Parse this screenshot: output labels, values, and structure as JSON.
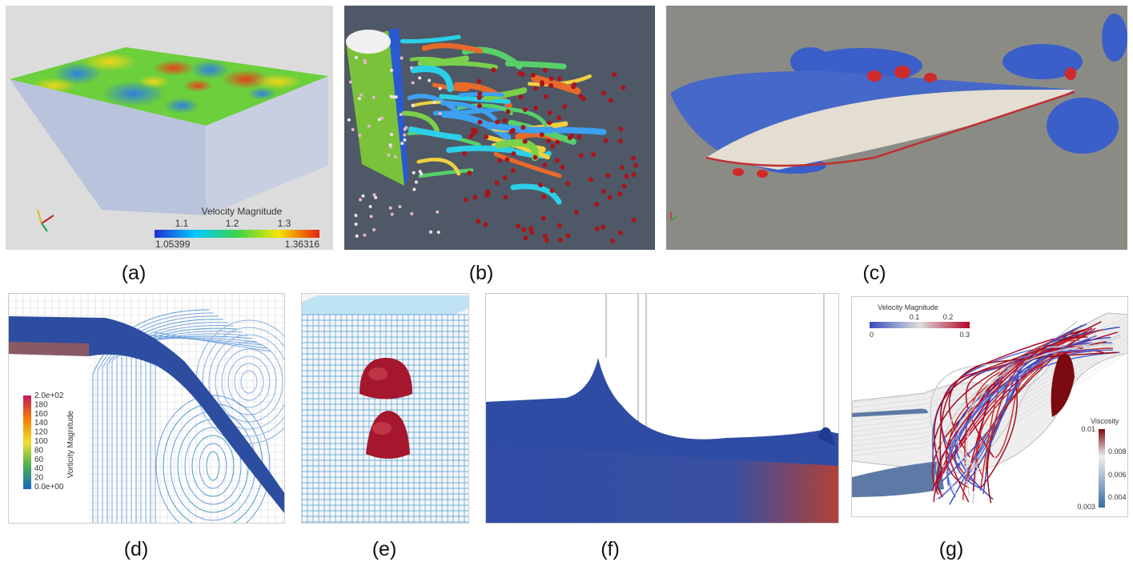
{
  "captions": [
    "(a)",
    "(b)",
    "(c)",
    "(d)",
    "(e)",
    "(f)",
    "(g)"
  ],
  "panel_a": {
    "colorbar_title": "Velocity Magnitude",
    "ticks": [
      "1.1",
      "1.2",
      "1.3"
    ],
    "min_label": "1.05399",
    "max_label": "1.36316",
    "colors": [
      "#3b4cc0",
      "#00c8ff",
      "#3cd34a",
      "#f4e600",
      "#ff6a00",
      "#e01010"
    ]
  },
  "panel_d": {
    "colorbar_title": "Vorticity Magnitude",
    "ticks": [
      "2.0e+02",
      "180",
      "160",
      "140",
      "120",
      "100",
      "80",
      "60",
      "40",
      "20",
      "0.0e+00"
    ]
  },
  "panel_g": {
    "velocity_title": "Velocity Magnitude",
    "velocity_ticks": [
      "0.1",
      "0.2"
    ],
    "velocity_min": "0",
    "velocity_max": "0.3",
    "viscosity_title": "Viscosity",
    "viscosity_ticks": [
      "0.01",
      "0.008",
      "0.006",
      "0.004",
      "0.003"
    ]
  }
}
